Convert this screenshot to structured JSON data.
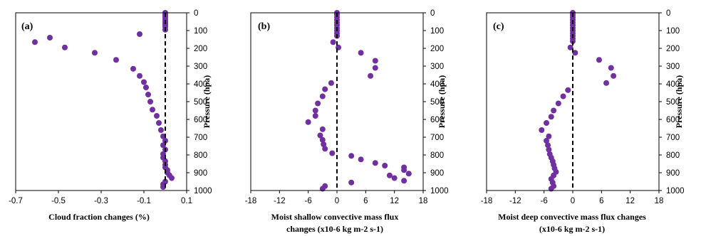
{
  "chart_data": [
    {
      "type": "scatter",
      "panel_label": "(a)",
      "xlabel": "Cloud fraction changes (%)",
      "xlabel2": "",
      "ylabel": "Pressure (hpa)",
      "xlim": [
        -0.7,
        0.1
      ],
      "ylim": [
        1000,
        0
      ],
      "xticks": [
        "-0.7",
        "-0.5",
        "-0.3",
        "-0.1",
        "0.1"
      ],
      "yticks": [
        "0",
        "100",
        "200",
        "300",
        "400",
        "500",
        "600",
        "700",
        "800",
        "900",
        "1000"
      ],
      "reference_x": 0,
      "color": "#7030A0",
      "points": [
        [
          0.0,
          0
        ],
        [
          0.0,
          10
        ],
        [
          0.0,
          20
        ],
        [
          0.0,
          30
        ],
        [
          0.0,
          40
        ],
        [
          0.0,
          50
        ],
        [
          0.0,
          60
        ],
        [
          0.0,
          70
        ],
        [
          0.0,
          80
        ],
        [
          0.0,
          95
        ],
        [
          -0.12,
          120
        ],
        [
          -0.54,
          140
        ],
        [
          -0.61,
          165
        ],
        [
          -0.47,
          195
        ],
        [
          -0.33,
          225
        ],
        [
          -0.23,
          265
        ],
        [
          -0.15,
          315
        ],
        [
          -0.12,
          355
        ],
        [
          -0.1,
          390
        ],
        [
          -0.09,
          420
        ],
        [
          -0.08,
          460
        ],
        [
          -0.07,
          500
        ],
        [
          -0.06,
          545
        ],
        [
          -0.04,
          580
        ],
        [
          -0.03,
          620
        ],
        [
          -0.02,
          660
        ],
        [
          -0.01,
          695
        ],
        [
          0.0,
          720
        ],
        [
          -0.01,
          745
        ],
        [
          0.0,
          770
        ],
        [
          -0.01,
          795
        ],
        [
          -0.01,
          815
        ],
        [
          0.0,
          835
        ],
        [
          0.0,
          855
        ],
        [
          0.0,
          870
        ],
        [
          0.01,
          885
        ],
        [
          0.01,
          900
        ],
        [
          0.02,
          915
        ],
        [
          0.03,
          930
        ],
        [
          0.0,
          950
        ],
        [
          -0.01,
          965
        ],
        [
          -0.01,
          980
        ]
      ]
    },
    {
      "type": "scatter",
      "panel_label": "(b)",
      "xlabel": "Moist shallow convective mass flux",
      "xlabel2": "changes (x10-6 kg m-2 s-1)",
      "ylabel": "Pressure (hpa)",
      "xlim": [
        -18,
        18
      ],
      "ylim": [
        1000,
        0
      ],
      "xticks": [
        "-18",
        "-12",
        "-6",
        "0",
        "6",
        "12",
        "18"
      ],
      "yticks": [
        "0",
        "100",
        "200",
        "300",
        "400",
        "500",
        "600",
        "700",
        "800",
        "900",
        "1000"
      ],
      "reference_x": 0,
      "color": "#7030A0",
      "points": [
        [
          0.0,
          0
        ],
        [
          0.0,
          10
        ],
        [
          0.0,
          25
        ],
        [
          0.0,
          40
        ],
        [
          0.0,
          55
        ],
        [
          0.0,
          70
        ],
        [
          0.0,
          85
        ],
        [
          0.0,
          100
        ],
        [
          0.0,
          115
        ],
        [
          0.0,
          130
        ],
        [
          -0.8,
          165
        ],
        [
          0.3,
          195
        ],
        [
          5,
          225
        ],
        [
          8,
          270
        ],
        [
          8,
          310
        ],
        [
          7,
          355
        ],
        [
          -1.2,
          395
        ],
        [
          -2.5,
          430
        ],
        [
          -3,
          470
        ],
        [
          -4,
          510
        ],
        [
          -4.5,
          550
        ],
        [
          -4.5,
          580
        ],
        [
          -6,
          615
        ],
        [
          -3,
          655
        ],
        [
          -3.5,
          690
        ],
        [
          -3,
          715
        ],
        [
          -2.8,
          740
        ],
        [
          -2.5,
          765
        ],
        [
          -1,
          790
        ],
        [
          3,
          805
        ],
        [
          5,
          825
        ],
        [
          8,
          845
        ],
        [
          10,
          860
        ],
        [
          14,
          870
        ],
        [
          14,
          885
        ],
        [
          15,
          905
        ],
        [
          11,
          915
        ],
        [
          12,
          930
        ],
        [
          14,
          945
        ],
        [
          3,
          955
        ],
        [
          -2.5,
          975
        ],
        [
          -3,
          990
        ]
      ]
    },
    {
      "type": "scatter",
      "panel_label": "(c)",
      "xlabel": "Moist deep convective mass flux changes",
      "xlabel2": "(x10-6 kg m-2 s-1)",
      "ylabel": "Pressure (hpa)",
      "xlim": [
        -18,
        18
      ],
      "ylim": [
        1000,
        0
      ],
      "xticks": [
        "-18",
        "-12",
        "-6",
        "0",
        "6",
        "12",
        "18"
      ],
      "yticks": [
        "0",
        "100",
        "200",
        "300",
        "400",
        "500",
        "600",
        "700",
        "800",
        "900",
        "1000"
      ],
      "reference_x": 0,
      "color": "#7030A0",
      "points": [
        [
          0.0,
          0
        ],
        [
          0.0,
          12
        ],
        [
          0.0,
          25
        ],
        [
          0.0,
          40
        ],
        [
          0.0,
          55
        ],
        [
          0.0,
          70
        ],
        [
          0.0,
          85
        ],
        [
          0.0,
          100
        ],
        [
          0.0,
          115
        ],
        [
          0.0,
          130
        ],
        [
          0.0,
          145
        ],
        [
          0.0,
          160
        ],
        [
          -0.5,
          195
        ],
        [
          0.5,
          225
        ],
        [
          5.5,
          265
        ],
        [
          8,
          310
        ],
        [
          8.5,
          355
        ],
        [
          7,
          395
        ],
        [
          -1,
          435
        ],
        [
          -2,
          470
        ],
        [
          -3,
          510
        ],
        [
          -4,
          550
        ],
        [
          -4.5,
          585
        ],
        [
          -5.5,
          620
        ],
        [
          -6.5,
          660
        ],
        [
          -5,
          695
        ],
        [
          -5.5,
          720
        ],
        [
          -5.2,
          745
        ],
        [
          -5,
          770
        ],
        [
          -4.8,
          795
        ],
        [
          -4.5,
          815
        ],
        [
          -4.2,
          835
        ],
        [
          -4,
          855
        ],
        [
          -3.8,
          875
        ],
        [
          -3.5,
          895
        ],
        [
          -4,
          915
        ],
        [
          -4.5,
          935
        ],
        [
          -4.2,
          955
        ],
        [
          -4,
          975
        ],
        [
          -4.5,
          990
        ]
      ]
    }
  ]
}
